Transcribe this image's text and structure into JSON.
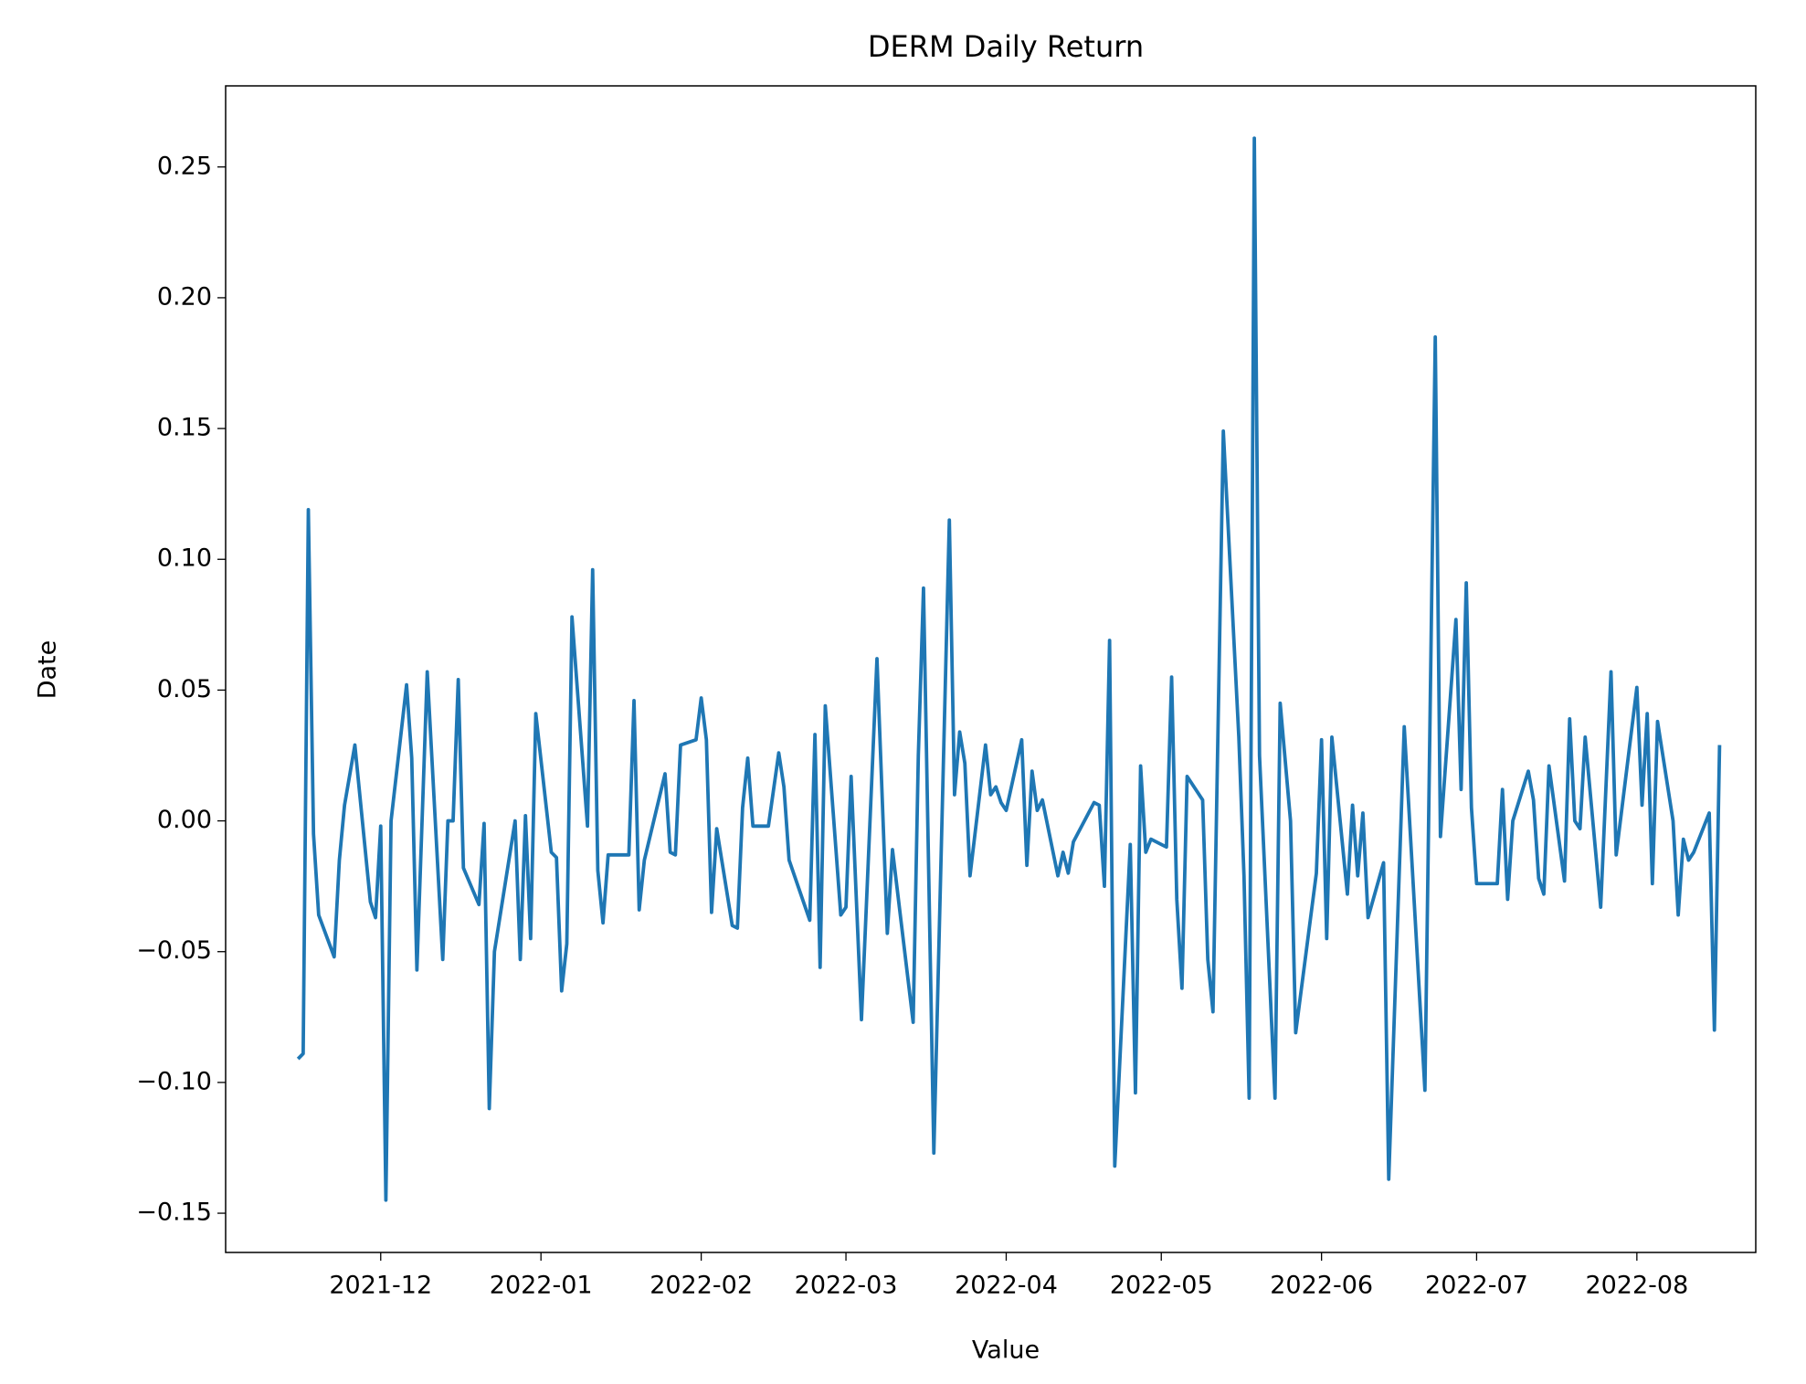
{
  "chart_data": {
    "type": "line",
    "title": "DERM Daily Return",
    "x_label": "Value",
    "y_label": "Date",
    "color": "#1f77b4",
    "xlim": [
      "2021-11-01",
      "2022-08-24"
    ],
    "xticks": [
      "2021-12",
      "2022-01",
      "2022-02",
      "2022-03",
      "2022-04",
      "2022-05",
      "2022-06",
      "2022-07",
      "2022-08"
    ],
    "ylim": [
      -0.165,
      0.281
    ],
    "yticks": [
      {
        "value": -0.15,
        "label": "−0.15"
      },
      {
        "value": -0.1,
        "label": "−0.10"
      },
      {
        "value": -0.05,
        "label": "−0.05"
      },
      {
        "value": 0,
        "label": "0.00"
      },
      0.05,
      {
        "value": 0.1,
        "label": "0.10"
      },
      0.15,
      {
        "value": 0.2,
        "label": "0.20"
      },
      0.25
    ],
    "x": [
      "2021-11-15",
      "2021-11-16",
      "2021-11-17",
      "2021-11-18",
      "2021-11-19",
      "2021-11-22",
      "2021-11-23",
      "2021-11-24",
      "2021-11-26",
      "2021-11-29",
      "2021-11-30",
      "2021-12-01",
      "2021-12-02",
      "2021-12-03",
      "2021-12-06",
      "2021-12-07",
      "2021-12-08",
      "2021-12-10",
      "2021-12-13",
      "2021-12-14",
      "2021-12-15",
      "2021-12-16",
      "2021-12-17",
      "2021-12-20",
      "2021-12-21",
      "2021-12-22",
      "2021-12-23",
      "2021-12-27",
      "2021-12-28",
      "2021-12-29",
      "2021-12-30",
      "2021-12-31",
      "2022-01-03",
      "2022-01-04",
      "2022-01-05",
      "2022-01-06",
      "2022-01-07",
      "2022-01-10",
      "2022-01-11",
      "2022-01-12",
      "2022-01-13",
      "2022-01-14",
      "2022-01-18",
      "2022-01-19",
      "2022-01-20",
      "2022-01-21",
      "2022-01-25",
      "2022-01-26",
      "2022-01-27",
      "2022-01-28",
      "2022-01-31",
      "2022-02-01",
      "2022-02-02",
      "2022-02-03",
      "2022-02-04",
      "2022-02-07",
      "2022-02-08",
      "2022-02-09",
      "2022-02-10",
      "2022-02-11",
      "2022-02-14",
      "2022-02-16",
      "2022-02-17",
      "2022-02-18",
      "2022-02-22",
      "2022-02-23",
      "2022-02-24",
      "2022-02-25",
      "2022-02-28",
      "2022-03-01",
      "2022-03-02",
      "2022-03-04",
      "2022-03-07",
      "2022-03-09",
      "2022-03-10",
      "2022-03-14",
      "2022-03-15",
      "2022-03-16",
      "2022-03-18",
      "2022-03-21",
      "2022-03-22",
      "2022-03-23",
      "2022-03-24",
      "2022-03-25",
      "2022-03-28",
      "2022-03-29",
      "2022-03-30",
      "2022-03-31",
      "2022-04-01",
      "2022-04-04",
      "2022-04-05",
      "2022-04-06",
      "2022-04-07",
      "2022-04-08",
      "2022-04-11",
      "2022-04-12",
      "2022-04-13",
      "2022-04-14",
      "2022-04-18",
      "2022-04-19",
      "2022-04-20",
      "2022-04-21",
      "2022-04-22",
      "2022-04-25",
      "2022-04-26",
      "2022-04-27",
      "2022-04-28",
      "2022-04-29",
      "2022-05-02",
      "2022-05-03",
      "2022-05-04",
      "2022-05-05",
      "2022-05-06",
      "2022-05-09",
      "2022-05-10",
      "2022-05-11",
      "2022-05-13",
      "2022-05-16",
      "2022-05-17",
      "2022-05-18",
      "2022-05-19",
      "2022-05-20",
      "2022-05-23",
      "2022-05-24",
      "2022-05-26",
      "2022-05-27",
      "2022-05-31",
      "2022-06-01",
      "2022-06-02",
      "2022-06-03",
      "2022-06-06",
      "2022-06-07",
      "2022-06-08",
      "2022-06-09",
      "2022-06-10",
      "2022-06-13",
      "2022-06-14",
      "2022-06-17",
      "2022-06-21",
      "2022-06-23",
      "2022-06-24",
      "2022-06-27",
      "2022-06-28",
      "2022-06-29",
      "2022-06-30",
      "2022-07-01",
      "2022-07-05",
      "2022-07-06",
      "2022-07-07",
      "2022-07-08",
      "2022-07-11",
      "2022-07-12",
      "2022-07-13",
      "2022-07-14",
      "2022-07-15",
      "2022-07-18",
      "2022-07-19",
      "2022-07-20",
      "2022-07-21",
      "2022-07-22",
      "2022-07-25",
      "2022-07-27",
      "2022-07-28",
      "2022-08-01",
      "2022-08-02",
      "2022-08-03",
      "2022-08-04",
      "2022-08-05",
      "2022-08-08",
      "2022-08-09",
      "2022-08-10",
      "2022-08-11",
      "2022-08-12",
      "2022-08-15",
      "2022-08-16",
      "2022-08-17"
    ],
    "values": [
      -0.091,
      -0.089,
      0.119,
      -0.005,
      -0.036,
      -0.052,
      -0.015,
      0.006,
      0.029,
      -0.031,
      -0.037,
      -0.002,
      -0.145,
      0.0,
      0.052,
      0.024,
      -0.057,
      0.057,
      -0.053,
      0.0,
      0.0,
      0.054,
      -0.018,
      -0.032,
      -0.001,
      -0.11,
      -0.05,
      0.0,
      -0.053,
      0.002,
      -0.045,
      0.041,
      -0.012,
      -0.014,
      -0.065,
      -0.047,
      0.078,
      -0.002,
      0.096,
      -0.019,
      -0.039,
      -0.013,
      -0.013,
      0.046,
      -0.034,
      -0.015,
      0.018,
      -0.012,
      -0.013,
      0.029,
      0.031,
      0.047,
      0.031,
      -0.035,
      -0.003,
      -0.04,
      -0.041,
      0.005,
      0.024,
      -0.002,
      -0.002,
      0.026,
      0.013,
      -0.015,
      -0.038,
      0.033,
      -0.056,
      0.044,
      -0.036,
      -0.033,
      0.017,
      -0.076,
      0.062,
      -0.043,
      -0.011,
      -0.077,
      0.025,
      0.089,
      -0.127,
      0.115,
      0.01,
      0.034,
      0.022,
      -0.021,
      0.029,
      0.01,
      0.013,
      0.007,
      0.004,
      0.031,
      -0.017,
      0.019,
      0.004,
      0.008,
      -0.021,
      -0.012,
      -0.02,
      -0.008,
      0.007,
      0.006,
      -0.025,
      0.069,
      -0.132,
      -0.009,
      -0.104,
      0.021,
      -0.012,
      -0.007,
      -0.01,
      0.055,
      -0.03,
      -0.064,
      0.017,
      0.008,
      -0.053,
      -0.073,
      0.149,
      0.032,
      -0.021,
      -0.106,
      0.261,
      0.025,
      -0.106,
      0.045,
      0.0,
      -0.081,
      -0.02,
      0.031,
      -0.045,
      0.032,
      -0.028,
      0.006,
      -0.021,
      0.003,
      -0.037,
      -0.016,
      -0.137,
      0.036,
      -0.103,
      0.185,
      -0.006,
      0.077,
      0.012,
      0.091,
      0.005,
      -0.024,
      -0.024,
      0.012,
      -0.03,
      0.0,
      0.019,
      0.008,
      -0.022,
      -0.028,
      0.021,
      -0.023,
      0.039,
      0.0,
      -0.003,
      0.032,
      -0.033,
      0.057,
      -0.013,
      0.051,
      0.006,
      0.041,
      -0.024,
      0.038,
      0.0,
      -0.036,
      -0.007,
      -0.015,
      -0.012,
      0.003,
      -0.08,
      0.029
    ]
  }
}
